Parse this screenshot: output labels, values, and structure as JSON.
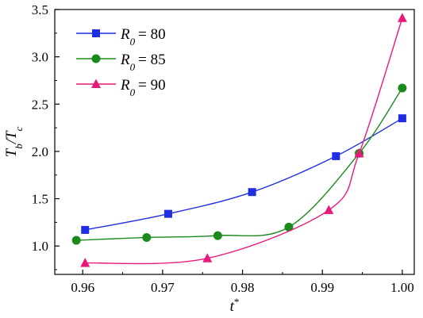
{
  "chart_data": {
    "type": "line",
    "title": "",
    "xlabel": {
      "main": "t",
      "sup": "*"
    },
    "ylabel": {
      "num_main": "T",
      "num_sub": "b",
      "den_main": "T",
      "den_sub": "c"
    },
    "xlim": [
      0.9565,
      1.0015
    ],
    "ylim": [
      0.7,
      3.5
    ],
    "xticks": [
      0.96,
      0.97,
      0.98,
      0.99,
      1.0
    ],
    "xtick_labels": [
      "0.96",
      "0.97",
      "0.98",
      "0.99",
      "1.00"
    ],
    "yticks": [
      1.0,
      1.5,
      2.0,
      2.5,
      3.0,
      3.5
    ],
    "ytick_labels": [
      "1.0",
      "1.5",
      "2.0",
      "2.5",
      "3.0",
      "3.5"
    ],
    "grid": false,
    "legend_position": "top-left",
    "series": [
      {
        "legend_var": "R",
        "legend_sub": "0",
        "legend_value": "= 80",
        "color": "#1f2ee0",
        "marker": "square",
        "x": [
          0.9603,
          0.9707,
          0.9812,
          0.9917,
          1.0
        ],
        "y": [
          1.17,
          1.34,
          1.57,
          1.95,
          2.35
        ]
      },
      {
        "legend_var": "R",
        "legend_sub": "0",
        "legend_value": "= 85",
        "color": "#1a8a1a",
        "marker": "circle",
        "x": [
          0.9592,
          0.968,
          0.9769,
          0.9858,
          0.9946,
          1.0
        ],
        "y": [
          1.06,
          1.09,
          1.11,
          1.2,
          1.98,
          2.67
        ]
      },
      {
        "legend_var": "R",
        "legend_sub": "0",
        "legend_value": "= 90",
        "color": "#e8197a",
        "marker": "triangle",
        "x": [
          0.9603,
          0.9756,
          0.9908,
          0.9946,
          1.0
        ],
        "y": [
          0.82,
          0.87,
          1.38,
          1.98,
          3.41
        ]
      }
    ]
  }
}
